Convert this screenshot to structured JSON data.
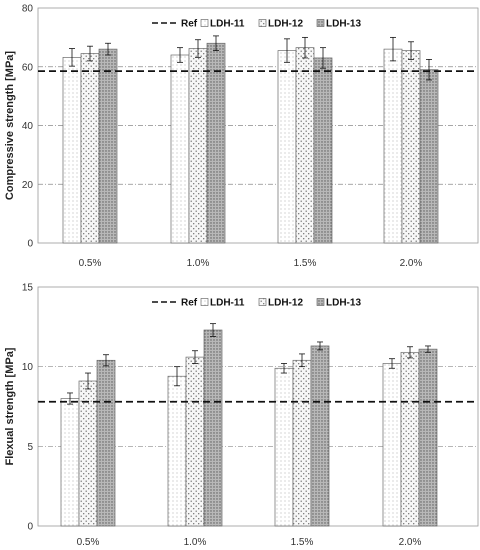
{
  "chart_data": [
    {
      "type": "bar",
      "ylabel": "Compressive strength [MPa]",
      "xlabel": "",
      "title": "",
      "categories": [
        "0.5%",
        "1.0%",
        "1.5%",
        "2.0%"
      ],
      "ylim": [
        0,
        80
      ],
      "yticks": [
        "0",
        "20",
        "40",
        "60",
        "80"
      ],
      "gridlines": [
        20,
        40,
        60
      ],
      "reference": {
        "name": "Ref",
        "value": 58.5
      },
      "series": [
        {
          "name": "LDH-11",
          "values": [
            63.2,
            64.0,
            65.5,
            66.0
          ],
          "errors": [
            3.0,
            2.5,
            4.0,
            4.0
          ]
        },
        {
          "name": "LDH-12",
          "values": [
            64.5,
            66.2,
            66.5,
            65.5
          ],
          "errors": [
            2.5,
            3.0,
            3.5,
            3.0
          ]
        },
        {
          "name": "LDH-13",
          "values": [
            66.0,
            68.0,
            63.0,
            59.0
          ],
          "errors": [
            2.0,
            2.5,
            3.5,
            3.5
          ]
        }
      ],
      "legend_position": "top"
    },
    {
      "type": "bar",
      "ylabel": "Flexual strength [MPa]",
      "xlabel": "",
      "title": "",
      "categories": [
        "0.5%",
        "1.0%",
        "1.5%",
        "2.0%"
      ],
      "ylim": [
        0,
        15
      ],
      "yticks": [
        "0",
        "5",
        "10",
        "15"
      ],
      "gridlines": [
        5,
        10
      ],
      "reference": {
        "name": "Ref",
        "value": 7.8
      },
      "series": [
        {
          "name": "LDH-11",
          "values": [
            8.0,
            9.4,
            9.9,
            10.2
          ],
          "errors": [
            0.35,
            0.6,
            0.3,
            0.3
          ]
        },
        {
          "name": "LDH-12",
          "values": [
            9.1,
            10.6,
            10.4,
            10.9
          ],
          "errors": [
            0.5,
            0.4,
            0.4,
            0.35
          ]
        },
        {
          "name": "LDH-13",
          "values": [
            10.4,
            12.3,
            11.3,
            11.1
          ],
          "errors": [
            0.35,
            0.4,
            0.25,
            0.2
          ]
        }
      ],
      "legend_position": "top"
    }
  ],
  "colors": {
    "ldh11": "#ffffff",
    "ldh12": "#f2f2f2",
    "ldh13": "#a9a9a9",
    "axis": "#999999",
    "reference": "#111111"
  }
}
